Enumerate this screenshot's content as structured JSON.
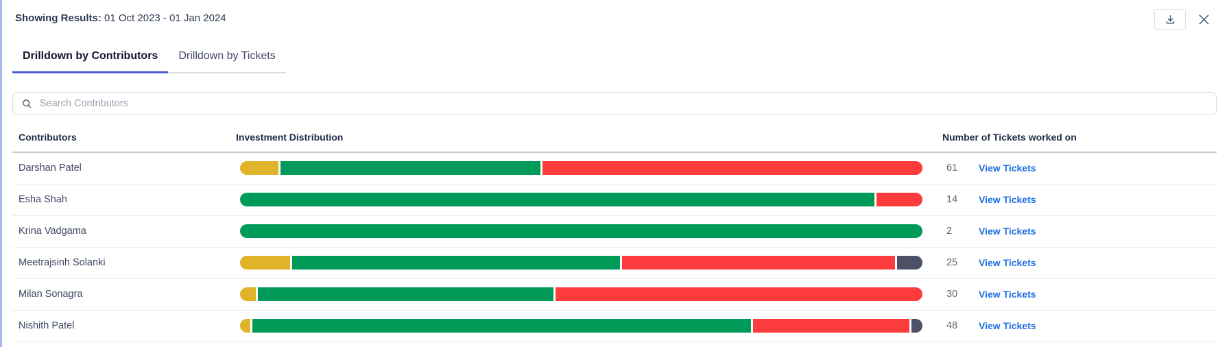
{
  "header": {
    "results_label": "Showing Results:",
    "date_range": "01 Oct 2023 - 01 Jan 2024"
  },
  "toolbar": {
    "download_icon": "download-icon",
    "close_icon": "close-icon"
  },
  "tabs": [
    {
      "label": "Drilldown by Contributors",
      "active": true
    },
    {
      "label": "Drilldown by Tickets",
      "active": false
    }
  ],
  "search": {
    "placeholder": "Search Contributors",
    "icon": "search-icon"
  },
  "table": {
    "columns": [
      "Contributors",
      "Investment Distribution",
      "Number of Tickets worked on"
    ],
    "view_tickets_label": "View Tickets",
    "rows": [
      {
        "name": "Darshan Patel",
        "tickets": 61,
        "segments": [
          {
            "color": "yellow",
            "pct": 5.7
          },
          {
            "color": "green",
            "pct": 38.3
          },
          {
            "color": "red",
            "pct": 56.0
          }
        ]
      },
      {
        "name": "Esha Shah",
        "tickets": 14,
        "segments": [
          {
            "color": "green",
            "pct": 93.2
          },
          {
            "color": "red",
            "pct": 6.8
          }
        ]
      },
      {
        "name": "Krina Vadgama",
        "tickets": 2,
        "segments": [
          {
            "color": "green",
            "pct": 100
          }
        ]
      },
      {
        "name": "Meetrajsinh Solanki",
        "tickets": 25,
        "segments": [
          {
            "color": "yellow",
            "pct": 7.4
          },
          {
            "color": "green",
            "pct": 48.5
          },
          {
            "color": "red",
            "pct": 40.3
          },
          {
            "color": "slate",
            "pct": 3.8
          }
        ]
      },
      {
        "name": "Milan Sonagra",
        "tickets": 30,
        "segments": [
          {
            "color": "yellow",
            "pct": 2.3
          },
          {
            "color": "green",
            "pct": 43.6
          },
          {
            "color": "red",
            "pct": 54.1
          }
        ]
      },
      {
        "name": "Nishith Patel",
        "tickets": 48,
        "segments": [
          {
            "color": "yellow",
            "pct": 1.5
          },
          {
            "color": "green",
            "pct": 73.8
          },
          {
            "color": "red",
            "pct": 23.1
          },
          {
            "color": "slate",
            "pct": 1.6
          }
        ]
      }
    ]
  },
  "colors": {
    "yellow": "#E0B32B",
    "green": "#009A58",
    "red": "#FC3C3C",
    "slate": "#4C5168",
    "tab_underline": "#4C5BD4",
    "link": "#1D6FE0",
    "left_border": "#A9B7EE"
  }
}
